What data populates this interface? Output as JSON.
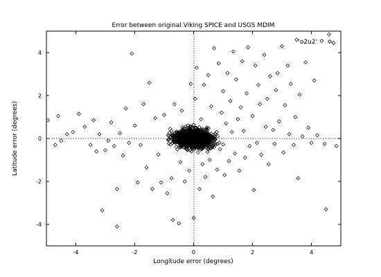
{
  "chart_data": {
    "type": "scatter",
    "title": "Error between original Viking SPICE and USGS MDIM",
    "xlabel": "Longitude error (degrees)",
    "ylabel": "Latitude error (degrees)",
    "xlim": [
      -5,
      5
    ],
    "ylim": [
      -5,
      5
    ],
    "xticks": [
      -4,
      -2,
      0,
      2,
      4
    ],
    "yticks": [
      -4,
      -2,
      0,
      2,
      4
    ],
    "grid": false,
    "zero_lines": true,
    "legend_position": "top-right",
    "series": [
      {
        "name": "'o2u2'",
        "marker": "diamond",
        "color": "#000000",
        "points": [
          [
            -4.95,
            0.85
          ],
          [
            -4.7,
            -0.3
          ],
          [
            -4.6,
            1.05
          ],
          [
            -4.5,
            -0.1
          ],
          [
            -4.3,
            0.2
          ],
          [
            -4.1,
            0.3
          ],
          [
            -3.9,
            1.15
          ],
          [
            -3.7,
            0.55
          ],
          [
            -3.5,
            -0.3
          ],
          [
            -3.4,
            0.85
          ],
          [
            -3.3,
            -0.6
          ],
          [
            -3.2,
            0.2
          ],
          [
            -3.1,
            -3.35
          ],
          [
            -3.0,
            -0.55
          ],
          [
            -2.9,
            -0.1
          ],
          [
            -2.8,
            0.75
          ],
          [
            -2.7,
            -0.35
          ],
          [
            -2.6,
            -2.35
          ],
          [
            -2.6,
            -4.1
          ],
          [
            -2.5,
            0.25
          ],
          [
            -2.4,
            -0.8
          ],
          [
            -2.3,
            1.4
          ],
          [
            -2.2,
            -0.2
          ],
          [
            -2.1,
            3.95
          ],
          [
            -2.0,
            0.6
          ],
          [
            -1.9,
            -2.05
          ],
          [
            -1.8,
            -0.3
          ],
          [
            -1.7,
            1.6
          ],
          [
            -1.6,
            -1.35
          ],
          [
            -1.5,
            2.6
          ],
          [
            -1.4,
            -2.35
          ],
          [
            -1.3,
            0.95
          ],
          [
            -1.2,
            -0.75
          ],
          [
            -1.1,
            -2.05
          ],
          [
            -1.0,
            1.1
          ],
          [
            -0.9,
            -2.55
          ],
          [
            -0.8,
            0.45
          ],
          [
            -0.75,
            -1.85
          ],
          [
            -0.7,
            -3.8
          ],
          [
            -0.65,
            1.6
          ],
          [
            -0.6,
            0.3
          ],
          [
            -0.55,
            -0.5
          ],
          [
            -0.5,
            -3.95
          ],
          [
            -0.45,
            -1.1
          ],
          [
            -0.4,
            1.3
          ],
          [
            -0.3,
            -2.0
          ],
          [
            -0.2,
            0.35
          ],
          [
            -0.15,
            -1.5
          ],
          [
            -0.1,
            2.55
          ],
          [
            -0.05,
            -0.2
          ],
          [
            0.0,
            -3.7
          ],
          [
            0.05,
            1.85
          ],
          [
            0.1,
            3.3
          ],
          [
            0.15,
            -0.65
          ],
          [
            0.2,
            -2.35
          ],
          [
            0.25,
            0.9
          ],
          [
            0.3,
            -1.2
          ],
          [
            0.35,
            2.5
          ],
          [
            0.4,
            -1.8
          ],
          [
            0.45,
            0.45
          ],
          [
            0.5,
            2.95
          ],
          [
            0.55,
            -1.0
          ],
          [
            0.6,
            1.5
          ],
          [
            0.65,
            -2.7
          ],
          [
            0.7,
            4.2
          ],
          [
            0.75,
            0.2
          ],
          [
            0.8,
            -1.45
          ],
          [
            0.85,
            3.5
          ],
          [
            0.9,
            -0.5
          ],
          [
            0.95,
            1.2
          ],
          [
            1.0,
            2.2
          ],
          [
            1.05,
            -1.7
          ],
          [
            1.1,
            0.7
          ],
          [
            1.15,
            3.05
          ],
          [
            1.2,
            -1.05
          ],
          [
            1.25,
            1.75
          ],
          [
            1.3,
            0.3
          ],
          [
            1.35,
            4.05
          ],
          [
            1.4,
            -0.7
          ],
          [
            1.45,
            2.75
          ],
          [
            1.5,
            0.9
          ],
          [
            1.55,
            -1.5
          ],
          [
            1.6,
            1.45
          ],
          [
            1.65,
            3.6
          ],
          [
            1.7,
            0.35
          ],
          [
            1.75,
            -0.9
          ],
          [
            1.8,
            2.1
          ],
          [
            1.85,
            4.25
          ],
          [
            1.9,
            -0.35
          ],
          [
            2.0,
            1.05
          ],
          [
            2.05,
            -2.4
          ],
          [
            2.1,
            3.4
          ],
          [
            2.15,
            -0.2
          ],
          [
            2.2,
            2.5
          ],
          [
            2.25,
            1.6
          ],
          [
            2.3,
            -0.75
          ],
          [
            2.4,
            3.9
          ],
          [
            2.45,
            0.55
          ],
          [
            2.5,
            1.85
          ],
          [
            2.55,
            -1.2
          ],
          [
            2.6,
            2.9
          ],
          [
            2.7,
            0.4
          ],
          [
            2.75,
            -0.25
          ],
          [
            2.8,
            2.25
          ],
          [
            2.85,
            3.05
          ],
          [
            2.9,
            0.8
          ],
          [
            3.0,
            4.3
          ],
          [
            3.05,
            -0.65
          ],
          [
            3.1,
            1.55
          ],
          [
            3.2,
            3.4
          ],
          [
            3.25,
            0.2
          ],
          [
            3.3,
            2.55
          ],
          [
            3.4,
            -0.3
          ],
          [
            3.45,
            1.0
          ],
          [
            3.5,
            4.6
          ],
          [
            3.55,
            -1.85
          ],
          [
            3.6,
            2.05
          ],
          [
            3.7,
            0.1
          ],
          [
            3.8,
            3.55
          ],
          [
            3.9,
            0.5
          ],
          [
            4.0,
            -0.2
          ],
          [
            4.1,
            2.7
          ],
          [
            4.2,
            0.15
          ],
          [
            4.35,
            4.55
          ],
          [
            4.45,
            -0.25
          ],
          [
            4.5,
            -3.3
          ],
          [
            4.6,
            4.85
          ],
          [
            4.75,
            4.45
          ],
          [
            4.85,
            -0.35
          ]
        ]
      }
    ]
  }
}
